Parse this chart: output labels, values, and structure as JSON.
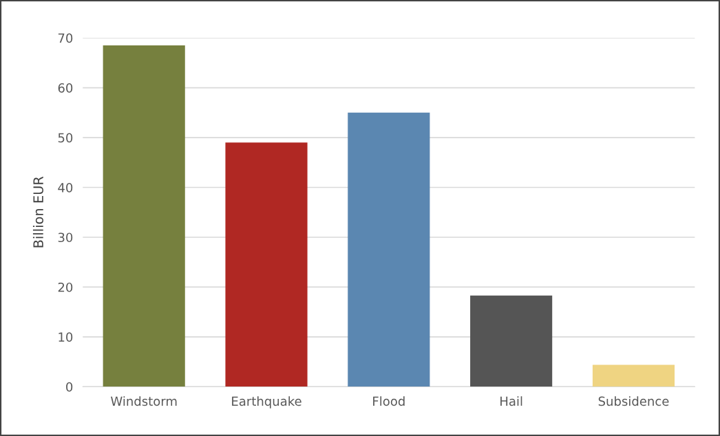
{
  "chart_data": {
    "type": "bar",
    "ylabel": "Billion EUR",
    "categories": [
      "Windstorm",
      "Earthquake",
      "Flood",
      "Hail",
      "Subsidence"
    ],
    "values": [
      68.5,
      49,
      55,
      18.3,
      4.4
    ],
    "colors": [
      "#76803e",
      "#b02823",
      "#5b87b1",
      "#555555",
      "#efd482"
    ],
    "ylim": [
      0,
      70
    ],
    "yticks": [
      0,
      10,
      20,
      30,
      40,
      50,
      60,
      70
    ],
    "grid": "y"
  }
}
